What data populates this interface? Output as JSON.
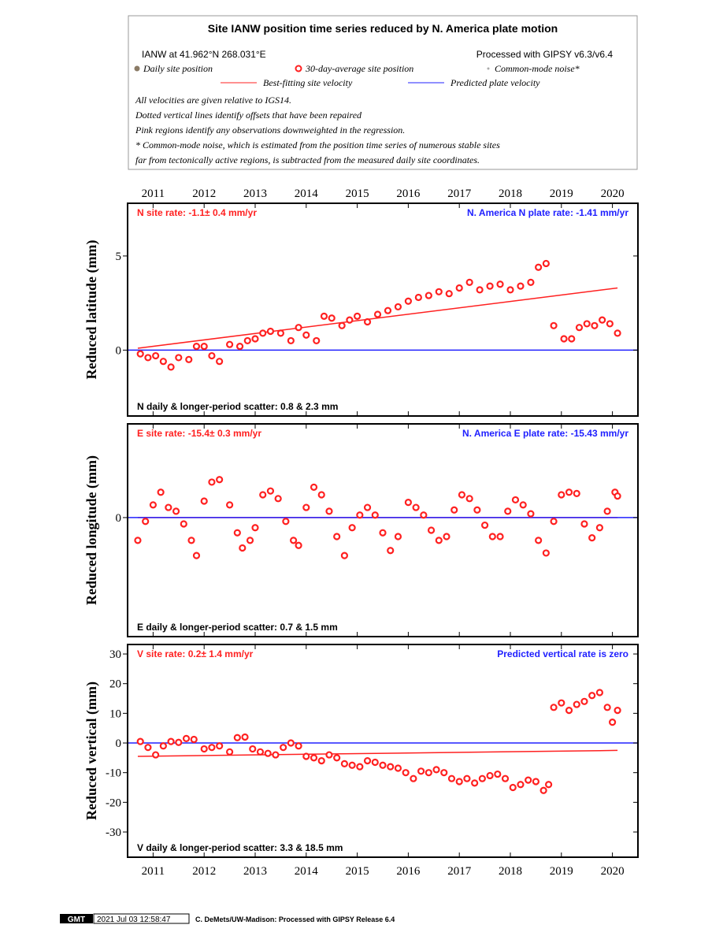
{
  "header": {
    "title": "Site IANW position time series reduced by N. America plate motion",
    "site_info": "IANW at 41.962°N 268.031°E",
    "processed": "Processed with GIPSY v6.3/v6.4",
    "legend_daily": "Daily site position",
    "legend_average": "30-day-average site position",
    "legend_noise": "Common-mode noise*",
    "legend_best_fit": "Best-fitting site velocity",
    "legend_plate": "Predicted plate velocity",
    "notes": [
      "All velocities are given relative to IGS14.",
      "Dotted vertical lines identify offsets that have been repaired",
      "Pink regions identify any observations downweighted in the regression.",
      "* Common-mode noise, which is estimated from the position time series of numerous stable sites",
      "far from tectonically active regions, is subtracted from the measured daily site coordinates."
    ]
  },
  "footer": {
    "logo": "GMT",
    "timestamp": "2021 Jul 03 12:58:47",
    "credit": "C. DeMets/UW-Madison: Processed with GIPSY Release 6.4"
  },
  "chart_data": [
    {
      "type": "scatter",
      "y_label": "Reduced latitude (mm)",
      "rate_label": "N site rate:  -1.1± 0.4 mm/yr",
      "plate_label": "N. America N plate rate: -1.41 mm/yr",
      "scatter_label": "N daily & longer-period scatter:   0.8 &   2.3 mm",
      "xlim": [
        2010.5,
        2020.5
      ],
      "xticks": [
        2011,
        2012,
        2013,
        2014,
        2015,
        2016,
        2017,
        2018,
        2019,
        2020
      ],
      "ylim": [
        -3.5,
        7.8
      ],
      "yticks": [
        0,
        5
      ],
      "series": [
        {
          "mark": "circle",
          "color": "#ff2020",
          "x": [
            2010.75,
            2010.9,
            2011.05,
            2011.2,
            2011.35,
            2011.5,
            2011.7,
            2011.85,
            2012.0,
            2012.15,
            2012.3,
            2012.5,
            2012.7,
            2012.85,
            2013.0,
            2013.15,
            2013.3,
            2013.5,
            2013.7,
            2013.85,
            2014.0,
            2014.2,
            2014.35,
            2014.5,
            2014.7,
            2014.85,
            2015.0,
            2015.2,
            2015.4,
            2015.6,
            2015.8,
            2016.0,
            2016.2,
            2016.4,
            2016.6,
            2016.8,
            2017.0,
            2017.2,
            2017.4,
            2017.6,
            2017.8,
            2018.0,
            2018.2,
            2018.4,
            2018.55,
            2018.7,
            2018.85,
            2019.05,
            2019.2,
            2019.35,
            2019.5,
            2019.65,
            2019.8,
            2019.95,
            2020.1
          ],
          "values": [
            -0.2,
            -0.4,
            -0.3,
            -0.6,
            -0.9,
            -0.4,
            -0.5,
            0.2,
            0.2,
            -0.3,
            -0.6,
            0.3,
            0.2,
            0.5,
            0.6,
            0.9,
            1.0,
            0.9,
            0.5,
            1.2,
            0.8,
            0.5,
            1.8,
            1.7,
            1.3,
            1.6,
            1.8,
            1.5,
            1.9,
            2.1,
            2.3,
            2.6,
            2.8,
            2.9,
            3.1,
            3.0,
            3.3,
            3.6,
            3.2,
            3.4,
            3.5,
            3.2,
            3.4,
            3.6,
            4.4,
            4.6,
            1.3,
            0.6,
            0.6,
            1.2,
            1.4,
            1.3,
            1.6,
            1.4,
            0.9
          ]
        },
        {
          "mark": "line",
          "color": "#ff2020",
          "x": [
            2010.7,
            2020.1
          ],
          "values": [
            0.1,
            3.3
          ]
        },
        {
          "mark": "line",
          "color": "#2020ff",
          "x": [
            2010.5,
            2020.5
          ],
          "values": [
            0,
            0
          ]
        }
      ]
    },
    {
      "type": "scatter",
      "y_label": "Reduced longitude (mm)",
      "rate_label": "E site rate: -15.4± 0.3 mm/yr",
      "plate_label": "N. America E plate rate: -15.43 mm/yr",
      "scatter_label": "E daily & longer-period scatter:   0.7 &   1.5 mm",
      "xlim": [
        2010.5,
        2020.5
      ],
      "xticks": [
        2011,
        2012,
        2013,
        2014,
        2015,
        2016,
        2017,
        2018,
        2019,
        2020
      ],
      "ylim": [
        -9.4,
        7.4
      ],
      "yticks": [
        0
      ],
      "series": [
        {
          "mark": "circle",
          "color": "#ff2020",
          "x": [
            2010.7,
            2010.85,
            2011.0,
            2011.15,
            2011.3,
            2011.45,
            2011.6,
            2011.75,
            2011.85,
            2012.0,
            2012.15,
            2012.3,
            2012.5,
            2012.65,
            2012.75,
            2012.9,
            2013.0,
            2013.15,
            2013.3,
            2013.45,
            2013.6,
            2013.75,
            2013.85,
            2014.0,
            2014.15,
            2014.3,
            2014.45,
            2014.6,
            2014.75,
            2014.9,
            2015.05,
            2015.2,
            2015.35,
            2015.5,
            2015.65,
            2015.8,
            2016.0,
            2016.15,
            2016.3,
            2016.45,
            2016.6,
            2016.75,
            2016.9,
            2017.05,
            2017.2,
            2017.35,
            2017.5,
            2017.65,
            2017.8,
            2017.95,
            2018.1,
            2018.25,
            2018.4,
            2018.55,
            2018.7,
            2018.85,
            2019.0,
            2019.15,
            2019.3,
            2019.45,
            2019.6,
            2019.75,
            2019.9,
            2020.05,
            2020.1
          ],
          "values": [
            -1.8,
            -0.3,
            1.0,
            2.0,
            0.8,
            0.5,
            -0.5,
            -1.8,
            -3.0,
            1.3,
            2.8,
            3.0,
            1.0,
            -1.2,
            -2.4,
            -1.8,
            -0.8,
            1.8,
            2.1,
            1.5,
            -0.3,
            -1.8,
            -2.2,
            0.8,
            2.4,
            1.8,
            0.5,
            -1.5,
            -3.0,
            -0.8,
            0.2,
            0.8,
            0.2,
            -1.2,
            -2.6,
            -1.5,
            1.2,
            0.8,
            0.2,
            -1.0,
            -1.8,
            -1.5,
            0.6,
            1.8,
            1.5,
            0.6,
            -0.6,
            -1.5,
            -1.5,
            0.5,
            1.4,
            1.0,
            0.3,
            -1.8,
            -2.8,
            -0.3,
            1.8,
            2.0,
            1.9,
            -0.5,
            -1.6,
            -0.8,
            0.5,
            2.0,
            1.7
          ]
        },
        {
          "mark": "line",
          "color": "#ff2020",
          "x": [
            2010.7,
            2020.1
          ],
          "values": [
            0,
            0
          ]
        },
        {
          "mark": "line",
          "color": "#2020ff",
          "x": [
            2010.5,
            2020.5
          ],
          "values": [
            0,
            0
          ]
        }
      ]
    },
    {
      "type": "scatter",
      "y_label": "Reduced vertical (mm)",
      "rate_label": "V site rate:  0.2± 1.4 mm/yr",
      "plate_label": "Predicted vertical rate is zero",
      "scatter_label": "V daily & longer-period scatter:   3.3 &  18.5 mm",
      "xlim": [
        2010.5,
        2020.5
      ],
      "xticks": [
        2011,
        2012,
        2013,
        2014,
        2015,
        2016,
        2017,
        2018,
        2019,
        2020
      ],
      "ylim": [
        -38.5,
        33.2
      ],
      "yticks": [
        -30,
        -20,
        -10,
        0,
        10,
        20,
        30
      ],
      "series": [
        {
          "mark": "circle",
          "color": "#ff2020",
          "x": [
            2010.75,
            2010.9,
            2011.05,
            2011.2,
            2011.35,
            2011.5,
            2011.65,
            2011.8,
            2012.0,
            2012.15,
            2012.3,
            2012.5,
            2012.65,
            2012.8,
            2012.95,
            2013.1,
            2013.25,
            2013.4,
            2013.55,
            2013.7,
            2013.85,
            2014.0,
            2014.15,
            2014.3,
            2014.45,
            2014.6,
            2014.75,
            2014.9,
            2015.05,
            2015.2,
            2015.35,
            2015.5,
            2015.65,
            2015.8,
            2015.95,
            2016.1,
            2016.25,
            2016.4,
            2016.55,
            2016.7,
            2016.85,
            2017.0,
            2017.15,
            2017.3,
            2017.45,
            2017.6,
            2017.75,
            2017.9,
            2018.05,
            2018.2,
            2018.35,
            2018.5,
            2018.65,
            2018.75,
            2018.85,
            2019.0,
            2019.15,
            2019.3,
            2019.45,
            2019.6,
            2019.75,
            2019.9,
            2020.0,
            2020.1
          ],
          "values": [
            0.5,
            -1.5,
            -4.0,
            -1.0,
            0.5,
            0.2,
            1.5,
            1.2,
            -2.0,
            -1.5,
            -1.0,
            -3.0,
            1.8,
            2.0,
            -2.0,
            -3.0,
            -3.5,
            -4.0,
            -1.5,
            0,
            -1.0,
            -4.5,
            -5.0,
            -6.0,
            -4.0,
            -5.0,
            -7.0,
            -7.5,
            -8.0,
            -6.0,
            -6.5,
            -7.5,
            -8.0,
            -8.5,
            -10.0,
            -12.0,
            -9.5,
            -10.0,
            -9.0,
            -10.0,
            -12.0,
            -13.0,
            -12.0,
            -13.5,
            -12.0,
            -11.0,
            -10.5,
            -12.0,
            -15.0,
            -14.0,
            -12.5,
            -13.0,
            -16.0,
            -14.0,
            12.0,
            13.5,
            11.0,
            13.0,
            14.0,
            16.0,
            17.0,
            12.0,
            7.0,
            11.0
          ]
        },
        {
          "mark": "line",
          "color": "#ff2020",
          "x": [
            2010.7,
            2020.1
          ],
          "values": [
            -4.5,
            -2.5
          ]
        },
        {
          "mark": "line",
          "color": "#2020ff",
          "x": [
            2010.5,
            2020.5
          ],
          "values": [
            0,
            0
          ]
        }
      ]
    }
  ]
}
